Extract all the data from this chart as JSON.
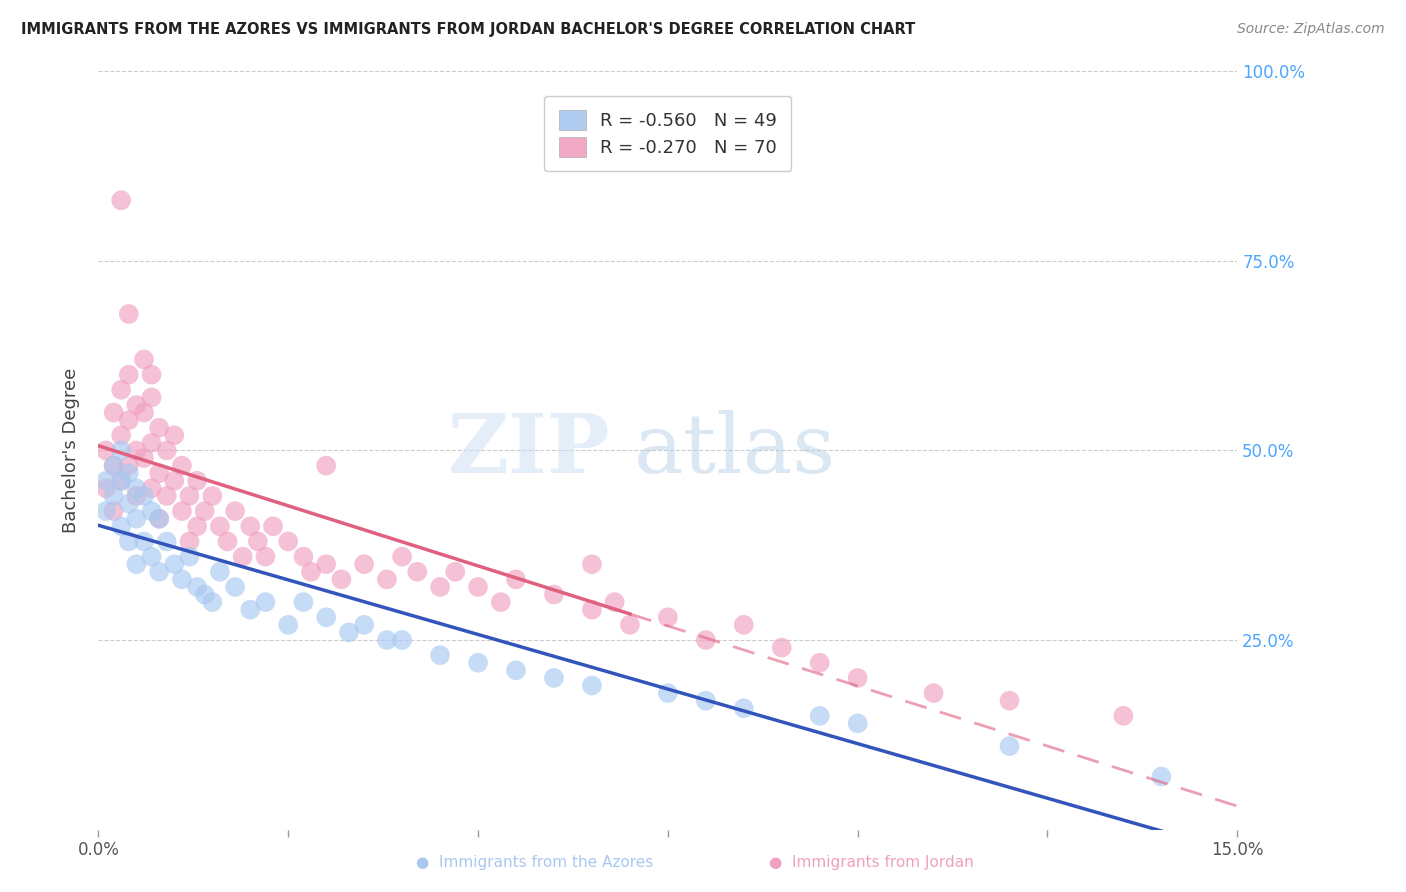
{
  "title": "IMMIGRANTS FROM THE AZORES VS IMMIGRANTS FROM JORDAN BACHELOR'S DEGREE CORRELATION CHART",
  "source": "Source: ZipAtlas.com",
  "ylabel_label": "Bachelor's Degree",
  "azores_color": "#a8c8f0",
  "jordan_color": "#f0a0c0",
  "azores_line_color": "#3355bb",
  "jordan_line_color": "#e06080",
  "xlim": [
    0.0,
    0.15
  ],
  "ylim": [
    0.0,
    1.0
  ],
  "azores_R": -0.56,
  "azores_N": 49,
  "jordan_R": -0.27,
  "jordan_N": 70,
  "azores_x": [
    0.001,
    0.001,
    0.002,
    0.002,
    0.003,
    0.003,
    0.003,
    0.004,
    0.004,
    0.004,
    0.005,
    0.005,
    0.005,
    0.006,
    0.006,
    0.007,
    0.007,
    0.008,
    0.008,
    0.009,
    0.01,
    0.011,
    0.012,
    0.013,
    0.014,
    0.015,
    0.016,
    0.018,
    0.02,
    0.022,
    0.025,
    0.027,
    0.03,
    0.033,
    0.035,
    0.038,
    0.04,
    0.045,
    0.05,
    0.055,
    0.06,
    0.065,
    0.075,
    0.08,
    0.085,
    0.095,
    0.1,
    0.12,
    0.14
  ],
  "azores_y": [
    0.46,
    0.42,
    0.48,
    0.44,
    0.5,
    0.46,
    0.4,
    0.47,
    0.43,
    0.38,
    0.45,
    0.41,
    0.35,
    0.44,
    0.38,
    0.42,
    0.36,
    0.41,
    0.34,
    0.38,
    0.35,
    0.33,
    0.36,
    0.32,
    0.31,
    0.3,
    0.34,
    0.32,
    0.29,
    0.3,
    0.27,
    0.3,
    0.28,
    0.26,
    0.27,
    0.25,
    0.25,
    0.23,
    0.22,
    0.21,
    0.2,
    0.19,
    0.18,
    0.17,
    0.16,
    0.15,
    0.14,
    0.11,
    0.07
  ],
  "jordan_x": [
    0.001,
    0.001,
    0.002,
    0.002,
    0.002,
    0.003,
    0.003,
    0.003,
    0.004,
    0.004,
    0.004,
    0.005,
    0.005,
    0.005,
    0.006,
    0.006,
    0.006,
    0.007,
    0.007,
    0.007,
    0.008,
    0.008,
    0.008,
    0.009,
    0.009,
    0.01,
    0.01,
    0.011,
    0.011,
    0.012,
    0.012,
    0.013,
    0.013,
    0.014,
    0.015,
    0.016,
    0.017,
    0.018,
    0.019,
    0.02,
    0.021,
    0.022,
    0.023,
    0.025,
    0.027,
    0.028,
    0.03,
    0.032,
    0.035,
    0.038,
    0.04,
    0.042,
    0.045,
    0.047,
    0.05,
    0.053,
    0.055,
    0.06,
    0.065,
    0.068,
    0.07,
    0.075,
    0.08,
    0.085,
    0.09,
    0.095,
    0.1,
    0.11,
    0.12,
    0.135
  ],
  "jordan_y": [
    0.5,
    0.45,
    0.55,
    0.48,
    0.42,
    0.58,
    0.52,
    0.46,
    0.6,
    0.54,
    0.48,
    0.56,
    0.5,
    0.44,
    0.62,
    0.55,
    0.49,
    0.57,
    0.51,
    0.45,
    0.53,
    0.47,
    0.41,
    0.5,
    0.44,
    0.52,
    0.46,
    0.48,
    0.42,
    0.44,
    0.38,
    0.46,
    0.4,
    0.42,
    0.44,
    0.4,
    0.38,
    0.42,
    0.36,
    0.4,
    0.38,
    0.36,
    0.4,
    0.38,
    0.36,
    0.34,
    0.35,
    0.33,
    0.35,
    0.33,
    0.36,
    0.34,
    0.32,
    0.34,
    0.32,
    0.3,
    0.33,
    0.31,
    0.29,
    0.3,
    0.27,
    0.28,
    0.25,
    0.27,
    0.24,
    0.22,
    0.2,
    0.18,
    0.17,
    0.15
  ],
  "jordan_special": [
    [
      0.003,
      0.83
    ],
    [
      0.004,
      0.68
    ],
    [
      0.007,
      0.6
    ],
    [
      0.03,
      0.48
    ],
    [
      0.065,
      0.35
    ]
  ]
}
